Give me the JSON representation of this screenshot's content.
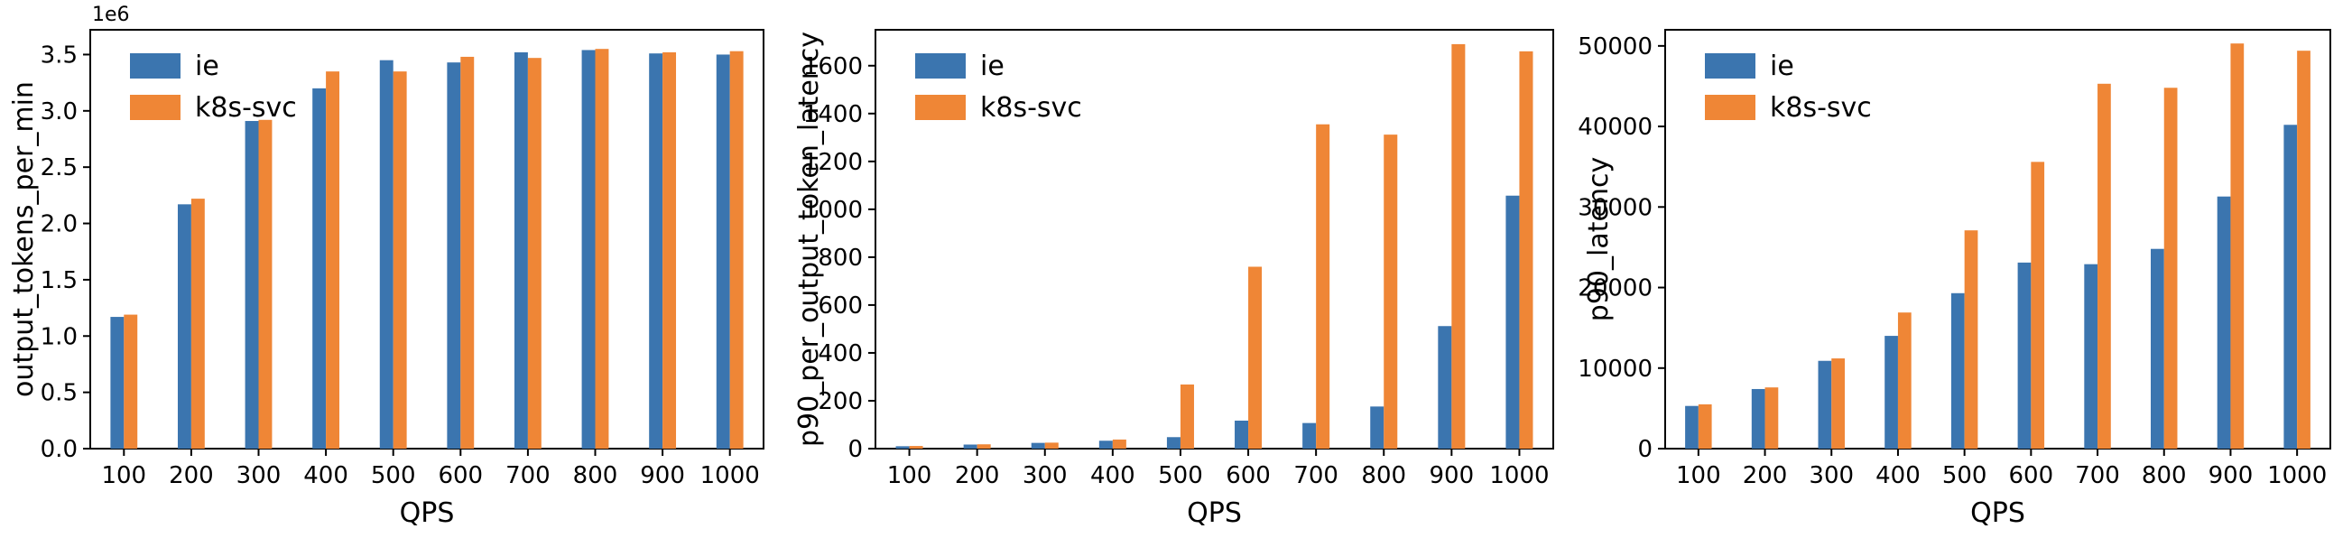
{
  "figure": {
    "background": "#ffffff",
    "axis_color": "#000000",
    "series_colors": {
      "ie": "#3b75af",
      "k8s-svc": "#ef8636"
    },
    "legend_labels": [
      "ie",
      "k8s-svc"
    ],
    "legend_position": "upper left"
  },
  "chart_data": [
    {
      "type": "bar",
      "title": "",
      "xlabel": "QPS",
      "ylabel": "output_tokens_per_min",
      "offset_text": "1e6",
      "grid": false,
      "categories": [
        100,
        200,
        300,
        400,
        500,
        600,
        700,
        800,
        900,
        1000
      ],
      "series": [
        {
          "name": "ie",
          "color": "#3b75af",
          "values": [
            1170000,
            2170000,
            2910000,
            3200000,
            3450000,
            3430000,
            3520000,
            3540000,
            3510000,
            3500000
          ]
        },
        {
          "name": "k8s-svc",
          "color": "#ef8636",
          "values": [
            1190000,
            2220000,
            2920000,
            3350000,
            3350000,
            3480000,
            3470000,
            3550000,
            3520000,
            3530000
          ]
        }
      ],
      "ylim": [
        0,
        3720000
      ],
      "yticks": [
        0,
        500000,
        1000000,
        1500000,
        2000000,
        2500000,
        3000000,
        3500000
      ],
      "ytick_labels": [
        "0.0",
        "0.5",
        "1.0",
        "1.5",
        "2.0",
        "2.5",
        "3.0",
        "3.5"
      ]
    },
    {
      "type": "bar",
      "title": "",
      "xlabel": "QPS",
      "ylabel": "p90_per_output_token_latency",
      "offset_text": "",
      "grid": false,
      "categories": [
        100,
        200,
        300,
        400,
        500,
        600,
        700,
        800,
        900,
        1000
      ],
      "series": [
        {
          "name": "ie",
          "color": "#3b75af",
          "values": [
            10,
            17,
            24,
            33,
            48,
            117,
            107,
            176,
            512,
            1057
          ]
        },
        {
          "name": "k8s-svc",
          "color": "#ef8636",
          "values": [
            11,
            18,
            25,
            38,
            268,
            760,
            1355,
            1312,
            1690,
            1660
          ]
        }
      ],
      "ylim": [
        0,
        1750
      ],
      "yticks": [
        0,
        200,
        400,
        600,
        800,
        1000,
        1200,
        1400,
        1600
      ],
      "ytick_labels": [
        "0",
        "200",
        "400",
        "600",
        "800",
        "1000",
        "1200",
        "1400",
        "1600"
      ]
    },
    {
      "type": "bar",
      "title": "",
      "xlabel": "QPS",
      "ylabel": "p90_latency",
      "offset_text": "",
      "grid": false,
      "categories": [
        100,
        200,
        300,
        400,
        500,
        600,
        700,
        800,
        900,
        1000
      ],
      "series": [
        {
          "name": "ie",
          "color": "#3b75af",
          "values": [
            5300,
            7400,
            10900,
            14000,
            19300,
            23100,
            22900,
            24800,
            31300,
            40200
          ]
        },
        {
          "name": "k8s-svc",
          "color": "#ef8636",
          "values": [
            5500,
            7600,
            11200,
            16900,
            27100,
            35600,
            45300,
            44800,
            50300,
            49400
          ]
        }
      ],
      "ylim": [
        0,
        52000
      ],
      "yticks": [
        0,
        10000,
        20000,
        30000,
        40000,
        50000
      ],
      "ytick_labels": [
        "0",
        "10000",
        "20000",
        "30000",
        "40000",
        "50000"
      ]
    }
  ]
}
